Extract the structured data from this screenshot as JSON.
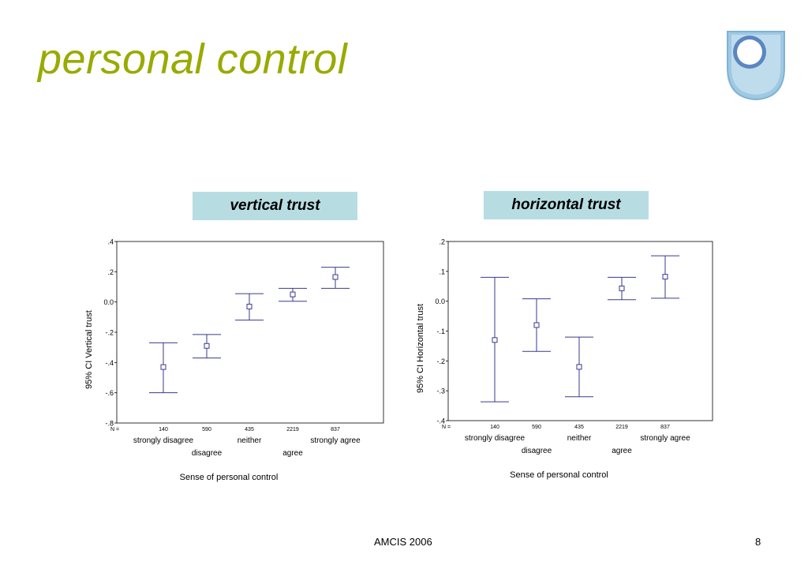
{
  "slide": {
    "title": "personal control",
    "footer": "AMCIS 2006",
    "page_number": "8"
  },
  "colors": {
    "title": "#99aa00",
    "label_box": "#b7dde2",
    "errorbar": "#3a3a8c",
    "logo_outer": "#9fc9e3",
    "logo_inner": "#5b86c0"
  },
  "icons": {
    "logo": "university-shield-logo"
  },
  "chart_data": [
    {
      "type": "errorbar",
      "title": "vertical trust",
      "xlabel": "Sense of personal control",
      "ylabel": "95% CI Vertical trust",
      "n_label": "N =",
      "categories": [
        "strongly disagree",
        "disagree",
        "neither",
        "agree",
        "strongly agree"
      ],
      "n": [
        "140",
        "590",
        "435",
        "2219",
        "837"
      ],
      "mean": [
        -0.43,
        -0.29,
        -0.03,
        0.05,
        0.165
      ],
      "lower": [
        -0.6,
        -0.37,
        -0.12,
        0.005,
        0.09
      ],
      "upper": [
        -0.27,
        -0.215,
        0.055,
        0.09,
        0.23
      ],
      "ylim": [
        -0.8,
        0.4
      ],
      "yticks": [
        0.4,
        0.2,
        0.0,
        -0.2,
        -0.4,
        -0.6,
        -0.8
      ],
      "ytick_labels": [
        ".4",
        ".2",
        "0.0",
        "-.2",
        "-.4",
        "-.6",
        "-.8"
      ],
      "grid": false
    },
    {
      "type": "errorbar",
      "title": "horizontal trust",
      "xlabel": "Sense of personal control",
      "ylabel": "95% CI Horizontal trust",
      "n_label": "N =",
      "categories": [
        "strongly disagree",
        "disagree",
        "neither",
        "agree",
        "strongly agree"
      ],
      "n": [
        "140",
        "590",
        "435",
        "2219",
        "837"
      ],
      "mean": [
        -0.13,
        -0.08,
        -0.22,
        0.043,
        0.082
      ],
      "lower": [
        -0.337,
        -0.168,
        -0.32,
        0.005,
        0.01
      ],
      "upper": [
        0.08,
        0.008,
        -0.12,
        0.08,
        0.152
      ],
      "ylim": [
        -0.4,
        0.2
      ],
      "yticks": [
        0.2,
        0.1,
        0.0,
        -0.1,
        -0.2,
        -0.3,
        -0.4
      ],
      "ytick_labels": [
        ".2",
        ".1",
        "0.0",
        "-.1",
        "-.2",
        "-.3",
        "-.4"
      ],
      "grid": false
    }
  ]
}
